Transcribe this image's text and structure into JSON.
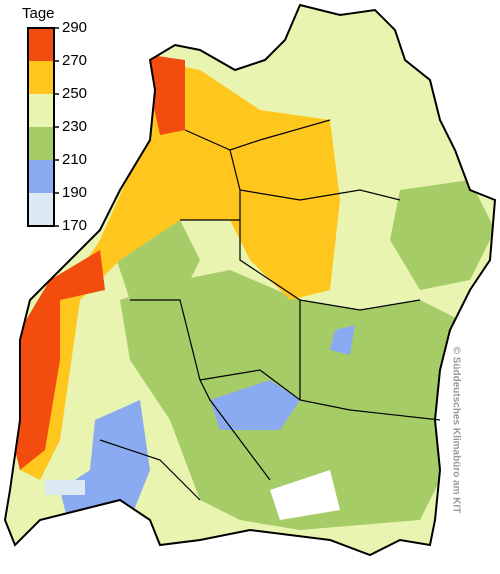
{
  "legend": {
    "title": "Tage",
    "ticks": [
      170,
      190,
      210,
      230,
      250,
      270,
      290
    ],
    "colors": [
      "#dce9f2",
      "#8aaaf2",
      "#a6cc68",
      "#e8f4b0",
      "#ffc61e",
      "#f24c0e"
    ]
  },
  "credit": "© Süddeutsches Klimabüro am KIT"
}
